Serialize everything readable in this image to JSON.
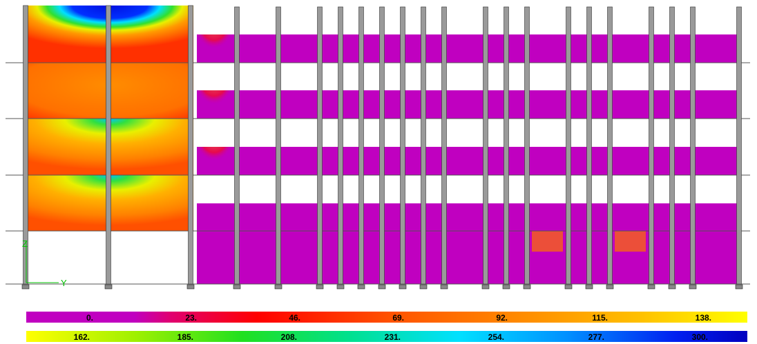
{
  "axes": {
    "z": "Z",
    "y": "Y"
  },
  "legend": {
    "row1": [
      "0.",
      "23.",
      "46.",
      "69.",
      "92.",
      "115.",
      "138."
    ],
    "row2": [
      "162.",
      "185.",
      "208.",
      "231.",
      "254.",
      "277.",
      "300."
    ]
  }
}
